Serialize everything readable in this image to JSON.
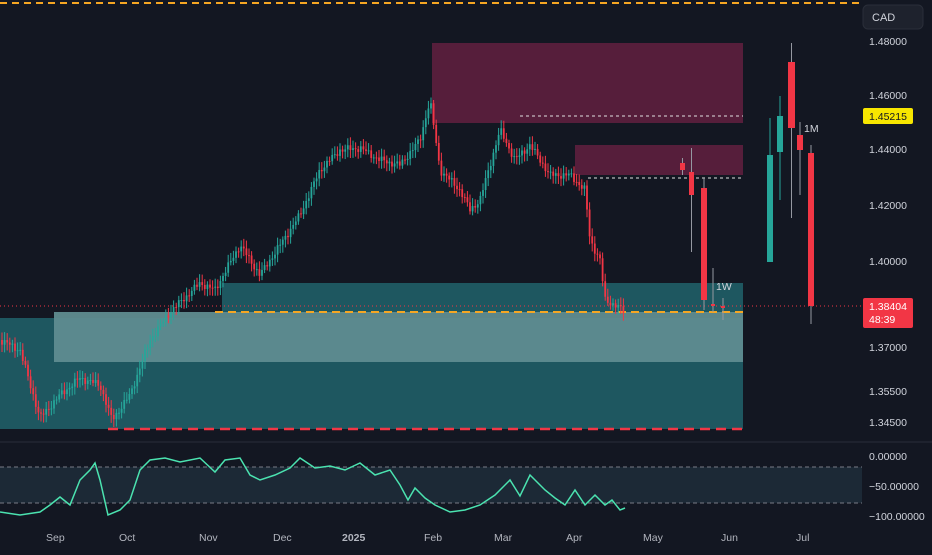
{
  "currency_button": {
    "label": "CAD"
  },
  "price_axis": {
    "labels": [
      "1.48000",
      "1.46000",
      "1.44000",
      "1.42000",
      "1.40000",
      "1.37000",
      "1.35500",
      "1.34500"
    ],
    "badge_high": "1.45215",
    "badge_last_price": "1.38404",
    "badge_countdown": "48:39",
    "colors": {
      "badge_high": "#f7e600",
      "badge_last": "#f23645"
    }
  },
  "indicator_axis": {
    "labels": [
      "0.00000",
      "−50.00000",
      "−100.00000"
    ]
  },
  "time_axis": {
    "labels": [
      "Sep",
      "Oct",
      "Nov",
      "Dec",
      "2025",
      "Feb",
      "Mar",
      "Apr",
      "May",
      "Jun",
      "Jul"
    ]
  },
  "timeframe_labels": {
    "weekly": "1W",
    "monthly": "1M"
  },
  "colors": {
    "bull": "#26a69a",
    "bear": "#f23645",
    "supply_zone": "#5c1f3e",
    "demand_zone": "#1f5d66",
    "oscillator": "#4be3b0",
    "level_line": "#f5a623"
  }
}
